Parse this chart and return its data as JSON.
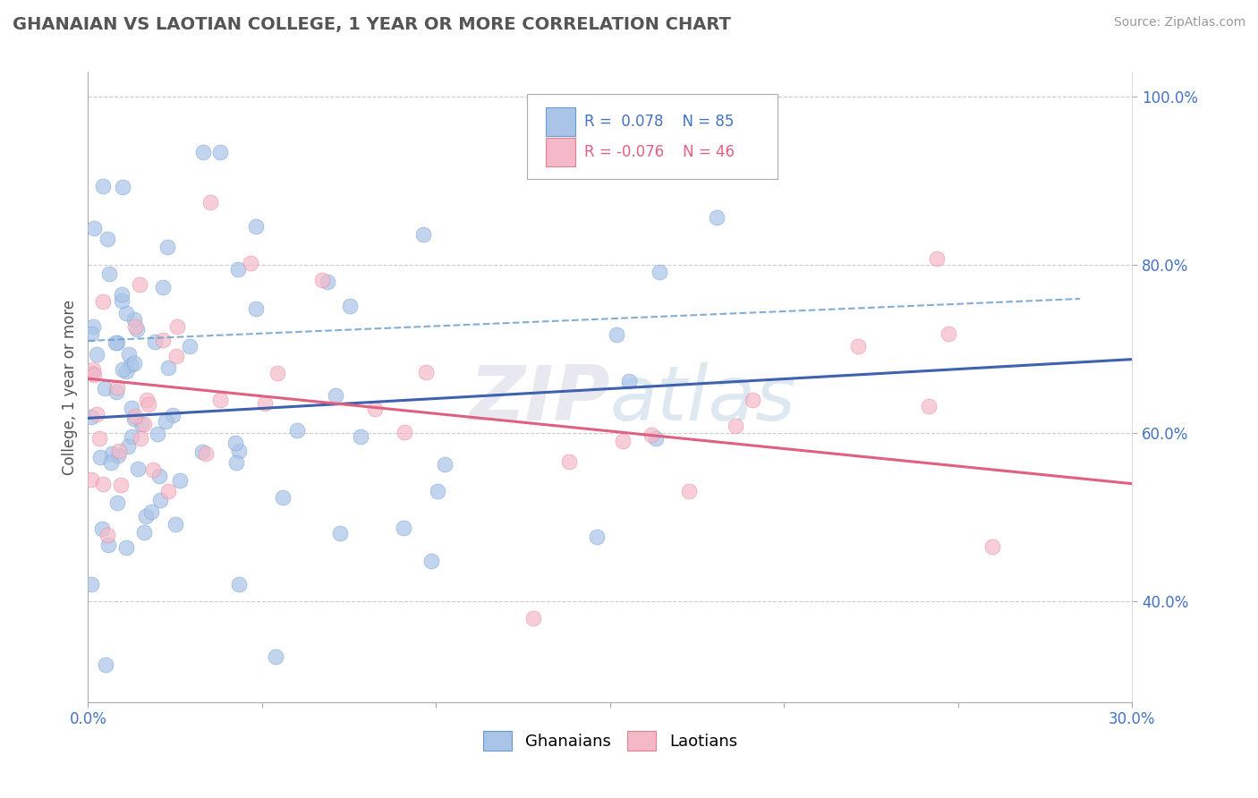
{
  "title": "GHANAIAN VS LAOTIAN COLLEGE, 1 YEAR OR MORE CORRELATION CHART",
  "source": "Source: ZipAtlas.com",
  "ylabel": "College, 1 year or more",
  "xlim": [
    0.0,
    0.3
  ],
  "ylim": [
    0.28,
    1.03
  ],
  "xtick_positions": [
    0.0,
    0.05,
    0.1,
    0.15,
    0.2,
    0.25,
    0.3
  ],
  "xtick_labels": [
    "0.0%",
    "",
    "",
    "",
    "",
    "",
    "30.0%"
  ],
  "ytick_positions": [
    0.4,
    0.6,
    0.8,
    1.0
  ],
  "ytick_labels": [
    "40.0%",
    "60.0%",
    "80.0%",
    "100.0%"
  ],
  "ghanaian_color": "#aac4e8",
  "ghanaian_edge_color": "#6699cc",
  "laotian_color": "#f5b8c8",
  "laotian_edge_color": "#e08090",
  "ghanaian_line_color": "#4060b0",
  "laotian_line_color": "#e06080",
  "dashed_line_color": "#6699cc",
  "grid_color": "#cccccc",
  "legend_label1": "Ghanaians",
  "legend_label2": "Laotians",
  "title_color": "#555555",
  "source_color": "#999999",
  "tick_color": "#4472c4",
  "ylabel_color": "#555555",
  "watermark_color": "#e8e8f0",
  "gh_trend_x0": 0.0,
  "gh_trend_y0": 0.618,
  "gh_trend_x1": 0.3,
  "gh_trend_y1": 0.688,
  "la_trend_x0": 0.0,
  "la_trend_y0": 0.665,
  "la_trend_x1": 0.3,
  "la_trend_y1": 0.54,
  "dash_trend_x0": 0.0,
  "dash_trend_y0": 0.71,
  "dash_trend_x1": 0.285,
  "dash_trend_y1": 0.76
}
